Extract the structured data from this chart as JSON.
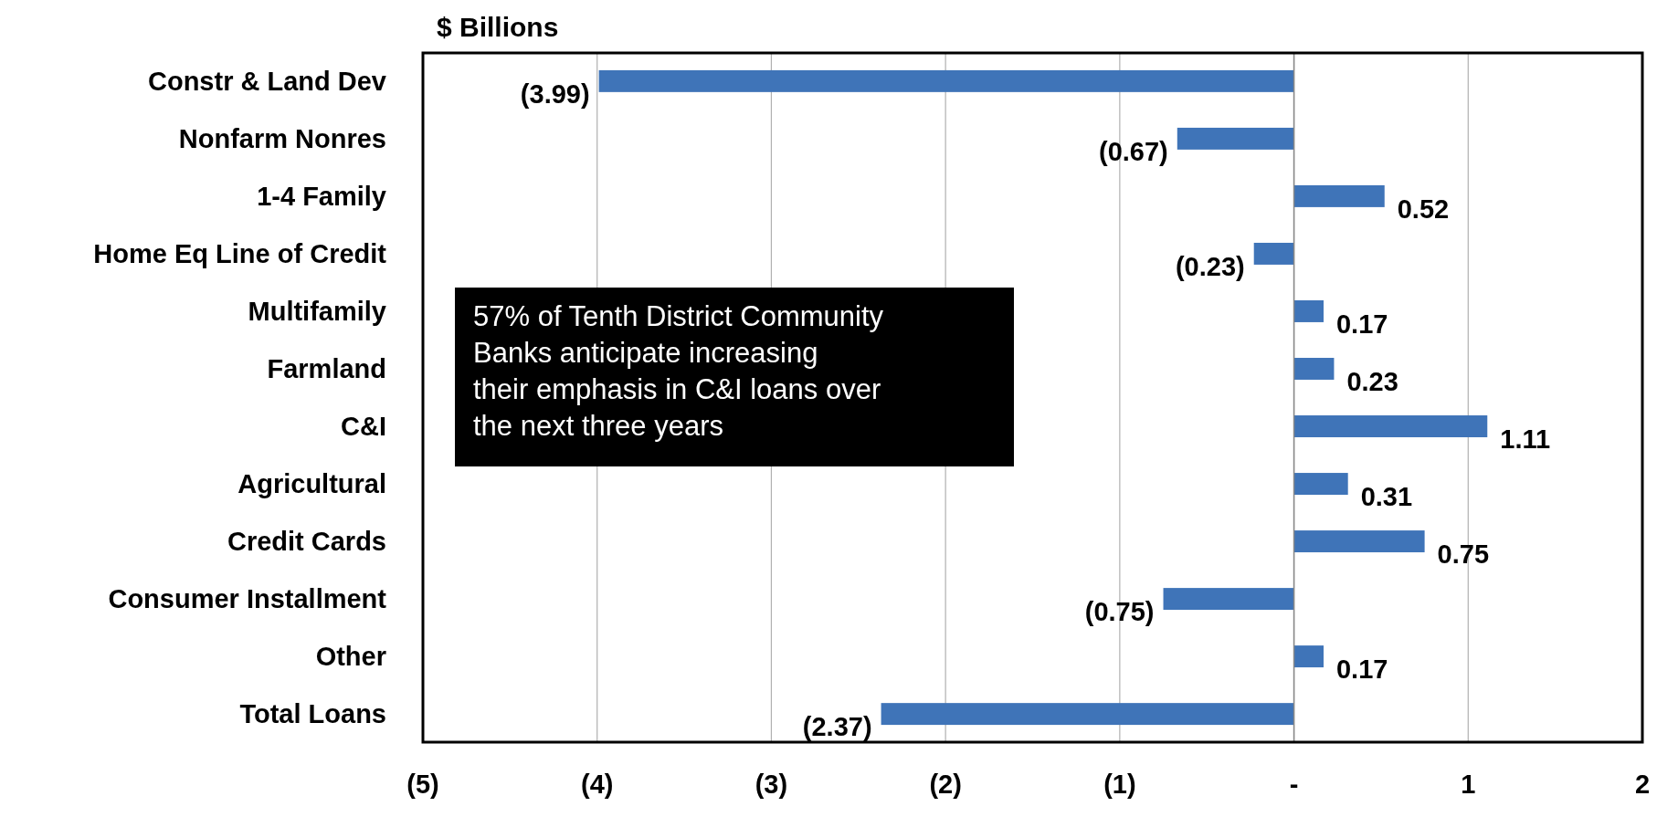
{
  "chart_data": {
    "type": "bar",
    "orientation": "horizontal",
    "title": "$ Billions",
    "categories": [
      "Constr & Land Dev",
      "Nonfarm Nonres",
      "1-4 Family",
      "Home Eq Line of Credit",
      "Multifamily",
      "Farmland",
      "C&I",
      "Agricultural",
      "Credit Cards",
      "Consumer Installment",
      "Other",
      "Total Loans"
    ],
    "values": [
      -3.99,
      -0.67,
      0.52,
      -0.23,
      0.17,
      0.23,
      1.11,
      0.31,
      0.75,
      -0.75,
      0.17,
      -2.37
    ],
    "value_labels": [
      "(3.99)",
      "(0.67)",
      "0.52",
      "(0.23)",
      "0.17",
      "0.23",
      "1.11",
      "0.31",
      "0.75",
      "(0.75)",
      "0.17",
      "(2.37)"
    ],
    "color": "#3f74b8",
    "xlim": [
      -5,
      2
    ],
    "xticks": [
      {
        "value": -5,
        "label": "(5)"
      },
      {
        "value": -4,
        "label": "(4)"
      },
      {
        "value": -3,
        "label": "(3)"
      },
      {
        "value": -2,
        "label": "(2)"
      },
      {
        "value": -1,
        "label": "(1)"
      },
      {
        "value": 0,
        "label": "-"
      },
      1,
      2
    ],
    "grid": "x",
    "annotations": [
      "57% of Tenth District Community Banks anticipate increasing their emphasis in C&I loans over the next three years"
    ]
  }
}
